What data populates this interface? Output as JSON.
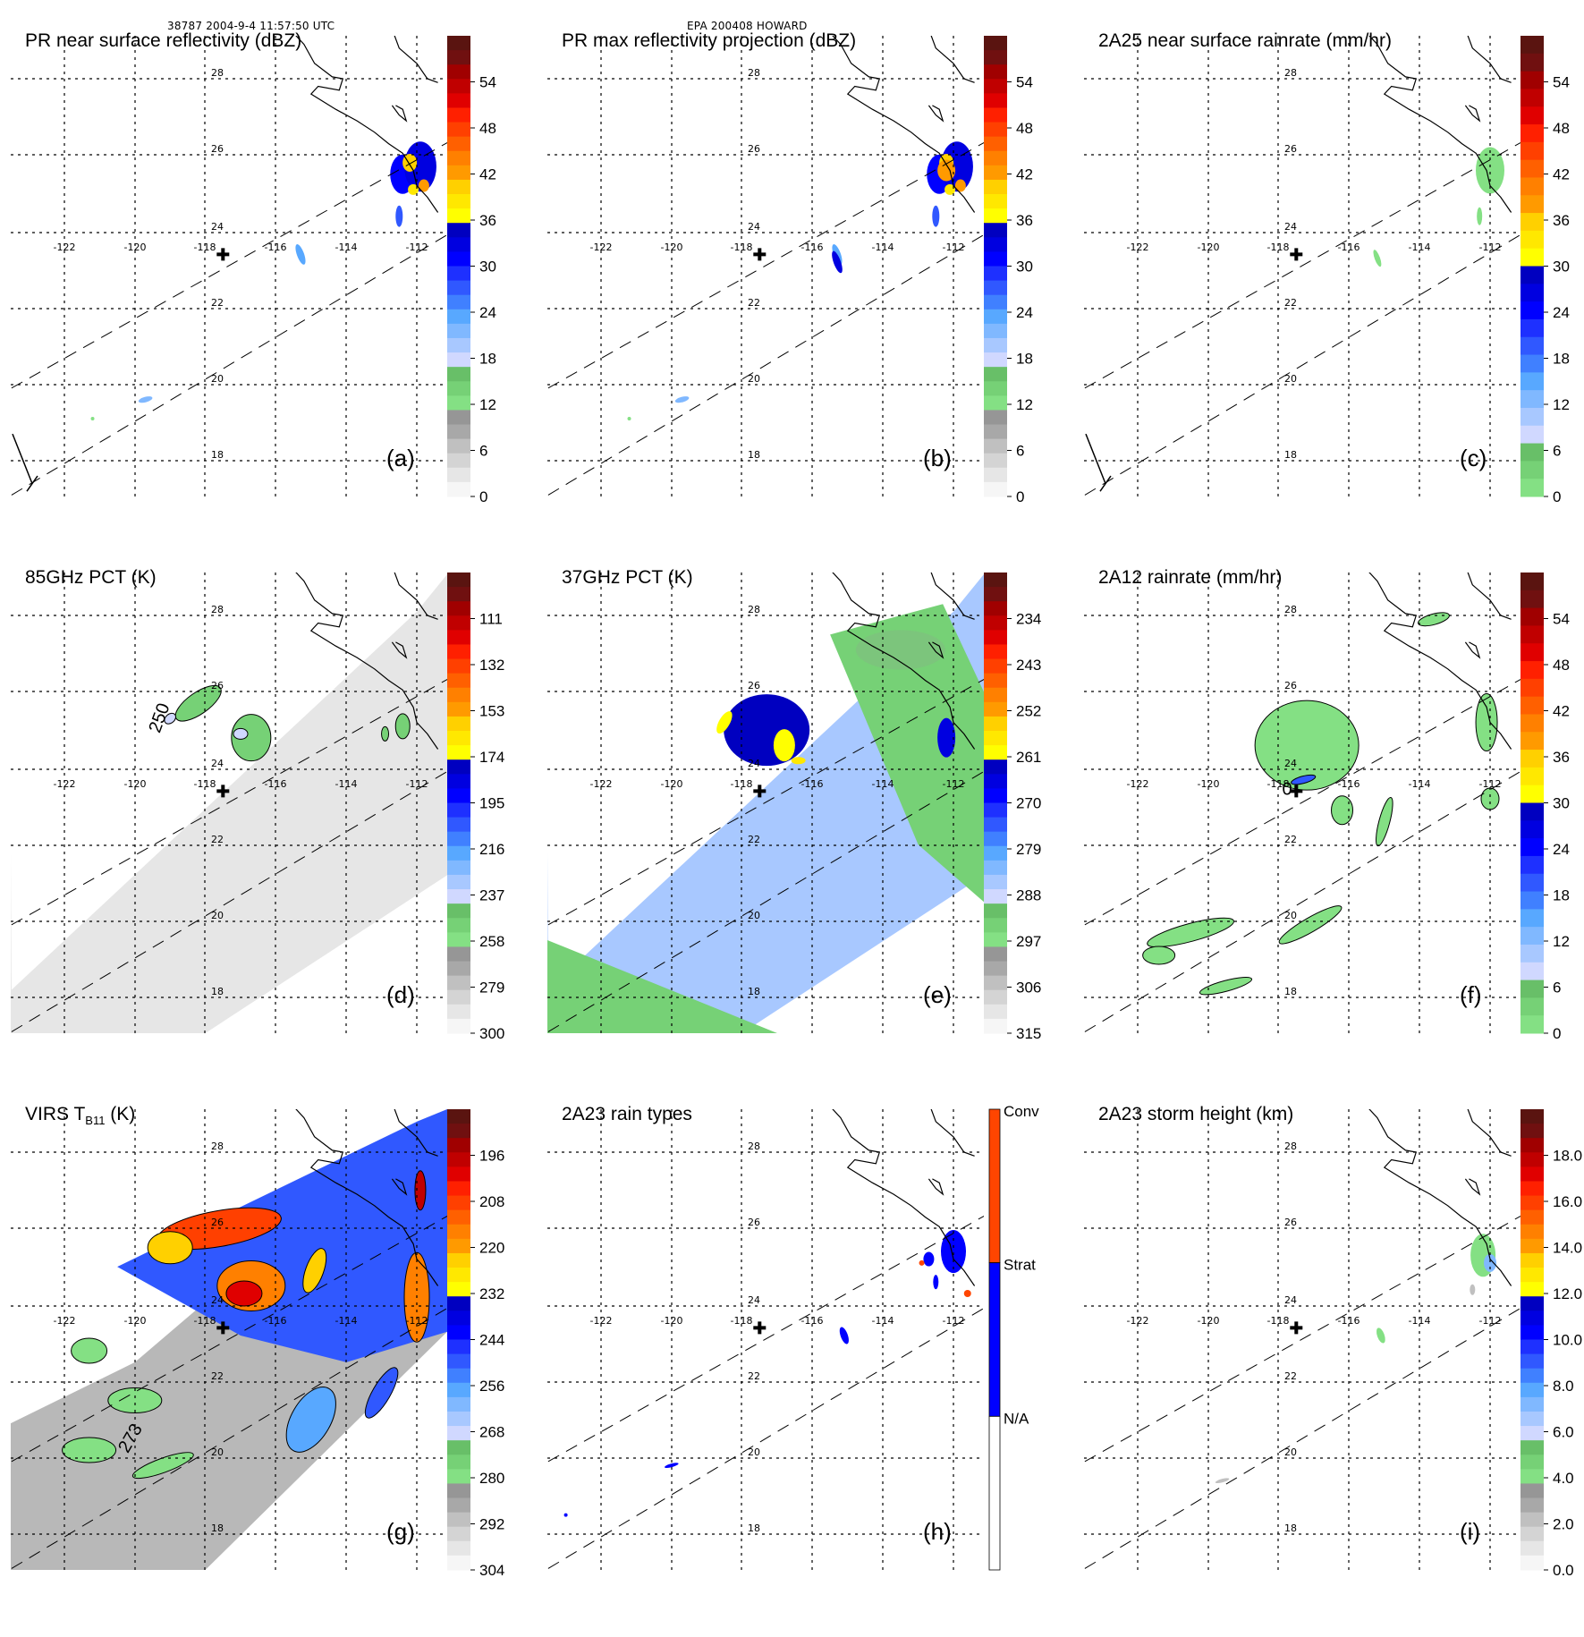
{
  "header": {
    "left": "38787 2004-9-4 11:57:50 UTC",
    "center": "EPA 200408 HOWARD"
  },
  "grid": {
    "lon_labels": [
      "-122",
      "-120",
      "-118",
      "-116",
      "-114",
      "-112"
    ],
    "lat_labels": [
      "28",
      "26",
      "24",
      "22",
      "20",
      "18"
    ],
    "storm_center_marker": "plus-icon"
  },
  "colormap": {
    "gray": [
      "#f6f6f6",
      "#e6e6e6",
      "#d4d4d4",
      "#c0c0c0",
      "#a8a8a8",
      "#969696"
    ],
    "green": [
      "#84e084",
      "#76d176",
      "#68bf68"
    ],
    "lightblue": [
      "#d0d8ff",
      "#a8c8ff",
      "#80b8ff",
      "#58a8ff"
    ],
    "blue": [
      "#4080ff",
      "#3058ff",
      "#1e30ff",
      "#0000ff",
      "#0000e0",
      "#0000c0"
    ],
    "yellow": [
      "#ffff00",
      "#ffe800",
      "#ffd000"
    ],
    "orange": [
      "#ff9a00",
      "#ff8000",
      "#ff6000"
    ],
    "red": [
      "#ff4000",
      "#ff2000",
      "#e00000",
      "#c00000"
    ],
    "darkred": [
      "#a00000",
      "#701010",
      "#5a1410"
    ],
    "raintype": {
      "conv": "#ff4500",
      "strat": "#0000ff",
      "na": "#ffffff"
    }
  },
  "panels": [
    {
      "id": "a",
      "title": "PR near surface reflectivity (dBZ)",
      "label": "(a)",
      "type": "continuous",
      "colorbar_ticks": [
        "54",
        "48",
        "42",
        "36",
        "30",
        "24",
        "18",
        "12",
        "6",
        "0"
      ],
      "scale": "refl",
      "contour_label": ""
    },
    {
      "id": "b",
      "title": "PR max reflectivity projection (dBZ)",
      "label": "(b)",
      "type": "continuous",
      "colorbar_ticks": [
        "54",
        "48",
        "42",
        "36",
        "30",
        "24",
        "18",
        "12",
        "6",
        "0"
      ],
      "scale": "refl",
      "contour_label": ""
    },
    {
      "id": "c",
      "title": "2A25 near surface rainrate (mm/hr)",
      "label": "(c)",
      "type": "continuous",
      "colorbar_ticks": [
        "54",
        "48",
        "42",
        "36",
        "30",
        "24",
        "18",
        "12",
        "6",
        "0"
      ],
      "scale": "rain",
      "contour_label": ""
    },
    {
      "id": "d",
      "title": "85GHz PCT (K)",
      "label": "(d)",
      "type": "continuous",
      "colorbar_ticks": [
        "111",
        "132",
        "153",
        "174",
        "195",
        "216",
        "237",
        "258",
        "279",
        "300"
      ],
      "scale": "refl",
      "contour_label": "250"
    },
    {
      "id": "e",
      "title": "37GHz PCT (K)",
      "label": "(e)",
      "type": "continuous",
      "colorbar_ticks": [
        "234",
        "243",
        "252",
        "261",
        "270",
        "279",
        "288",
        "297",
        "306",
        "315"
      ],
      "scale": "refl",
      "contour_label": ""
    },
    {
      "id": "f",
      "title": "2A12 rainrate (mm/hr)",
      "label": "(f)",
      "type": "continuous",
      "colorbar_ticks": [
        "54",
        "48",
        "42",
        "36",
        "30",
        "24",
        "18",
        "12",
        "6",
        "0"
      ],
      "scale": "rain",
      "contour_label": "0"
    },
    {
      "id": "g",
      "title_main": "VIRS T",
      "title_sub": "B11",
      "title_unit": " (K)",
      "label": "(g)",
      "type": "continuous",
      "colorbar_ticks": [
        "196",
        "208",
        "220",
        "232",
        "244",
        "256",
        "268",
        "280",
        "292",
        "304"
      ],
      "scale": "refl",
      "contour_label": "273"
    },
    {
      "id": "h",
      "title": "2A23 rain types",
      "label": "(h)",
      "type": "categorical",
      "colorbar_ticks": [
        "Conv",
        "Strat",
        "N/A"
      ]
    },
    {
      "id": "i",
      "title": "2A23 storm height (km)",
      "label": "(i)",
      "type": "continuous",
      "colorbar_ticks": [
        "18.0",
        "16.0",
        "14.0",
        "12.0",
        "10.0",
        "8.0",
        "6.0",
        "4.0",
        "2.0",
        "0.0"
      ],
      "scale": "refl",
      "contour_label": ""
    }
  ]
}
